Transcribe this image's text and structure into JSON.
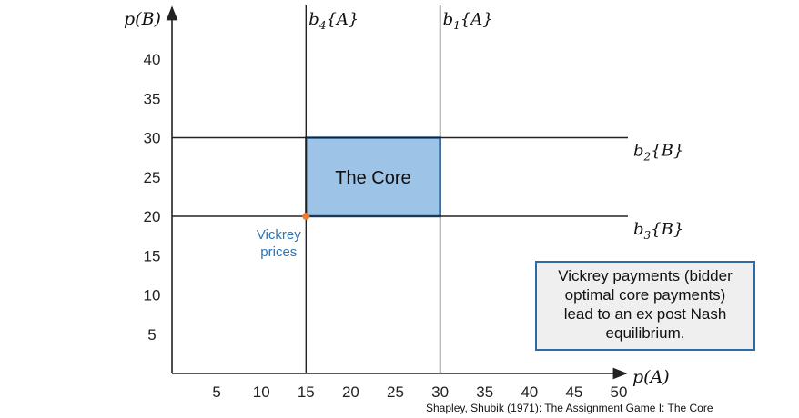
{
  "chart_data": {
    "type": "diagram",
    "x_axis": {
      "label_var": "A",
      "ticks": [
        5,
        10,
        15,
        20,
        25,
        30,
        35,
        40,
        45,
        50
      ],
      "range": [
        0,
        51
      ]
    },
    "y_axis": {
      "label_var": "B",
      "ticks": [
        5,
        10,
        15,
        20,
        25,
        30,
        35,
        40
      ],
      "range": [
        0,
        44
      ]
    },
    "vertical_lines": [
      {
        "x": 15,
        "label_main": "b",
        "label_sub": "4",
        "label_set": "{A}"
      },
      {
        "x": 30,
        "label_main": "b",
        "label_sub": "1",
        "label_set": "{A}"
      }
    ],
    "horizontal_lines": [
      {
        "y": 30,
        "label_main": "b",
        "label_sub": "2",
        "label_set": "{B}"
      },
      {
        "y": 20,
        "label_main": "b",
        "label_sub": "3",
        "label_set": "{B}"
      }
    ],
    "core_region": {
      "x": [
        15,
        30
      ],
      "y": [
        20,
        30
      ],
      "label": "The Core",
      "fill": "#9dc3e6",
      "stroke": "#2e6aa6"
    },
    "vickrey_point": {
      "x": 15,
      "y": 20,
      "label": "Vickrey\nprices",
      "color": "#ed7d31",
      "label_color": "#2e75b6"
    }
  },
  "callout": {
    "lines": [
      "Vickrey payments (bidder",
      "optimal  core payments)",
      "lead to an ex post  Nash",
      "equilibrium."
    ]
  },
  "credit": "Shapley, Shubik (1971): The Assignment Game I: The Core"
}
